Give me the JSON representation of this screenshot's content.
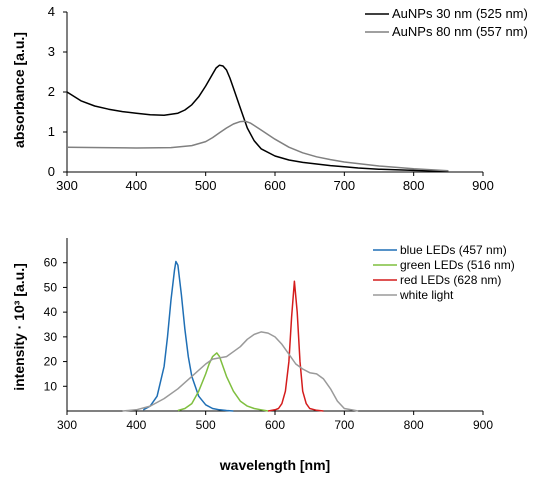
{
  "chart_data": [
    {
      "type": "line",
      "xlim": [
        300,
        900
      ],
      "ylim": [
        0,
        4
      ],
      "x_ticks": [
        300,
        400,
        500,
        600,
        700,
        800,
        900
      ],
      "y_ticks": [
        0,
        1,
        2,
        3,
        4
      ],
      "xlabel": "",
      "ylabel": "absorbance [a.u.]",
      "grid": false,
      "legend_position": "top-right",
      "series": [
        {
          "name": "AuNPs 30 nm (525 nm)",
          "color": "#000000",
          "x": [
            300,
            320,
            340,
            360,
            380,
            400,
            420,
            440,
            460,
            470,
            480,
            490,
            500,
            510,
            515,
            520,
            525,
            530,
            535,
            540,
            550,
            560,
            570,
            580,
            600,
            620,
            640,
            660,
            680,
            700,
            720,
            750,
            800,
            850
          ],
          "y": [
            2.0,
            1.78,
            1.65,
            1.57,
            1.51,
            1.47,
            1.43,
            1.42,
            1.47,
            1.55,
            1.68,
            1.88,
            2.15,
            2.45,
            2.6,
            2.67,
            2.65,
            2.55,
            2.35,
            2.1,
            1.6,
            1.1,
            0.78,
            0.58,
            0.4,
            0.3,
            0.24,
            0.2,
            0.16,
            0.13,
            0.1,
            0.07,
            0.04,
            0.02
          ]
        },
        {
          "name": "AuNPs 80 nm (557 nm)",
          "color": "#808080",
          "x": [
            300,
            350,
            400,
            450,
            480,
            500,
            510,
            520,
            530,
            540,
            550,
            557,
            565,
            580,
            600,
            620,
            640,
            660,
            680,
            700,
            750,
            800,
            850
          ],
          "y": [
            0.62,
            0.61,
            0.6,
            0.61,
            0.66,
            0.76,
            0.86,
            0.98,
            1.1,
            1.2,
            1.26,
            1.27,
            1.22,
            1.05,
            0.82,
            0.62,
            0.48,
            0.38,
            0.31,
            0.25,
            0.15,
            0.08,
            0.03
          ]
        }
      ]
    },
    {
      "type": "line",
      "xlim": [
        300,
        900
      ],
      "ylim": [
        0,
        70
      ],
      "x_ticks": [
        300,
        400,
        500,
        600,
        700,
        800,
        900
      ],
      "y_ticks": [
        10,
        20,
        30,
        40,
        50,
        60
      ],
      "xlabel": "wavelength [nm]",
      "ylabel": "intensity · 10³ [a.u.]",
      "grid": false,
      "legend_position": "top-right",
      "series": [
        {
          "name": "blue LEDs (457 nm)",
          "color": "#1f6fb5",
          "x": [
            410,
            420,
            430,
            440,
            445,
            450,
            455,
            457,
            460,
            465,
            470,
            475,
            480,
            490,
            500,
            510,
            520,
            530,
            540
          ],
          "y": [
            0.5,
            2,
            6,
            18,
            30,
            45,
            57,
            60.5,
            59,
            47,
            33,
            22,
            14,
            6,
            2.5,
            1,
            0.5,
            0.2,
            0
          ]
        },
        {
          "name": "green LEDs (516 nm)",
          "color": "#7fbf3f",
          "x": [
            460,
            470,
            480,
            490,
            500,
            505,
            510,
            516,
            520,
            525,
            530,
            540,
            550,
            560,
            570,
            580,
            590
          ],
          "y": [
            0.2,
            1,
            3,
            8,
            15,
            19,
            22,
            23.5,
            22,
            18,
            14,
            8,
            4,
            2,
            1,
            0.5,
            0
          ]
        },
        {
          "name": "red LEDs (628 nm)",
          "color": "#d41c1c",
          "x": [
            590,
            600,
            605,
            610,
            615,
            620,
            624,
            628,
            632,
            636,
            640,
            645,
            650,
            660,
            670
          ],
          "y": [
            0,
            0.5,
            1,
            3,
            8,
            20,
            38,
            52.5,
            40,
            20,
            8,
            3,
            1,
            0.3,
            0
          ]
        },
        {
          "name": "white light",
          "color": "#9a9a9a",
          "x": [
            380,
            400,
            420,
            440,
            460,
            480,
            500,
            510,
            520,
            530,
            540,
            550,
            560,
            570,
            580,
            590,
            600,
            610,
            620,
            630,
            640,
            650,
            660,
            670,
            680,
            690,
            700,
            720
          ],
          "y": [
            0,
            0.5,
            2,
            5,
            9,
            14,
            19,
            21,
            21.5,
            22,
            24,
            26,
            29,
            31,
            32,
            31.5,
            30,
            27,
            23,
            19,
            17,
            15.5,
            15,
            13,
            9,
            4,
            1,
            0
          ]
        }
      ]
    }
  ]
}
